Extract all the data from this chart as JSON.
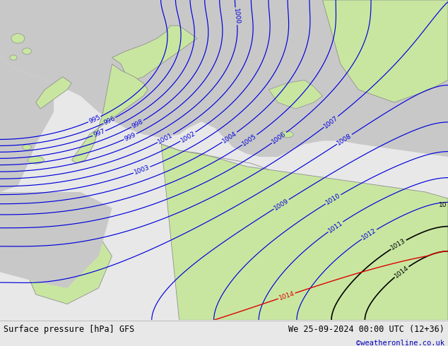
{
  "title_left": "Surface pressure [hPa] GFS",
  "title_right": "We 25-09-2024 00:00 UTC (12+36)",
  "copyright": "©weatheronline.co.uk",
  "land_color": "#c8e6a0",
  "sea_color": "#c8c8c8",
  "coast_color": "#909090",
  "blue_contour_color": "#0000dd",
  "black_contour_color": "#000000",
  "red_contour_color": "#dd0000",
  "bottom_bar_color": "#e8e8e8",
  "fig_width": 6.34,
  "fig_height": 4.9,
  "dpi": 100
}
